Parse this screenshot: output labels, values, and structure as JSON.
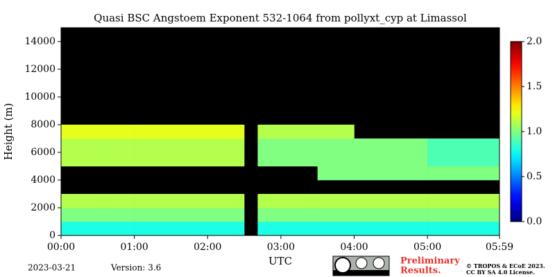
{
  "chart_data": {
    "type": "heatmap",
    "title": "Quasi BSC Angstoem Exponent 532-1064 from pollyxt_cyp at Limassol",
    "y_label": "Height (m)",
    "x_label": "UTC",
    "x": [
      0,
      30,
      60,
      90,
      120,
      150,
      161,
      180,
      210,
      240,
      270,
      300,
      330
    ],
    "y_bins": [
      0,
      1000,
      2000,
      3000,
      4000,
      5000,
      6000,
      7000,
      8000,
      9000,
      10000,
      11000,
      12000,
      13000,
      14000,
      15000
    ],
    "z": [
      [
        0.8,
        0.8,
        0.8,
        0.8,
        0.8,
        null,
        0.8,
        0.8,
        0.8,
        0.8,
        0.8,
        0.8,
        0.8
      ],
      [
        1.0,
        1.0,
        1.0,
        1.0,
        1.0,
        null,
        1.0,
        1.0,
        1.0,
        1.0,
        1.0,
        1.0,
        1.0
      ],
      [
        1.1,
        1.1,
        1.1,
        1.1,
        1.1,
        null,
        1.1,
        1.1,
        1.1,
        1.1,
        1.1,
        1.1,
        1.1
      ],
      [
        null,
        null,
        null,
        null,
        null,
        null,
        null,
        null,
        null,
        null,
        null,
        null,
        null
      ],
      [
        null,
        null,
        null,
        null,
        null,
        null,
        null,
        null,
        1.0,
        1.0,
        1.0,
        1.0,
        1.0
      ],
      [
        1.1,
        1.1,
        1.1,
        1.1,
        1.1,
        null,
        1.0,
        1.0,
        1.0,
        1.0,
        1.0,
        0.9,
        0.9
      ],
      [
        1.1,
        1.1,
        1.1,
        1.1,
        1.1,
        null,
        1.0,
        1.0,
        1.0,
        1.0,
        1.0,
        0.9,
        0.9
      ],
      [
        1.2,
        1.2,
        1.2,
        1.2,
        1.2,
        null,
        1.1,
        1.1,
        1.1,
        null,
        null,
        null,
        null
      ],
      [
        null,
        null,
        null,
        null,
        null,
        null,
        null,
        null,
        null,
        null,
        null,
        null,
        null
      ],
      [
        null,
        null,
        null,
        null,
        null,
        null,
        null,
        null,
        null,
        null,
        null,
        null,
        null
      ],
      [
        null,
        null,
        null,
        null,
        null,
        null,
        null,
        null,
        null,
        null,
        null,
        null,
        null
      ],
      [
        null,
        null,
        null,
        null,
        null,
        null,
        null,
        null,
        null,
        null,
        null,
        null,
        null
      ],
      [
        null,
        null,
        null,
        null,
        null,
        null,
        null,
        null,
        null,
        null,
        null,
        null,
        null
      ],
      [
        null,
        null,
        null,
        null,
        null,
        null,
        null,
        null,
        null,
        null,
        null,
        null,
        null
      ],
      [
        null,
        null,
        null,
        null,
        null,
        null,
        null,
        null,
        null,
        null,
        null,
        null,
        null
      ]
    ],
    "xlim": [
      0,
      359
    ],
    "xticks": [
      {
        "value": 0,
        "label": "00:00"
      },
      {
        "value": 60,
        "label": "01:00"
      },
      {
        "value": 120,
        "label": "02:00"
      },
      {
        "value": 180,
        "label": "03:00"
      },
      {
        "value": 240,
        "label": "04:00"
      },
      {
        "value": 300,
        "label": "05:00"
      },
      {
        "value": 359,
        "label": "05:59"
      }
    ],
    "ylim": [
      0,
      15000
    ],
    "yticks": [
      0,
      2000,
      4000,
      6000,
      8000,
      10000,
      12000,
      14000
    ],
    "colormap": "jet",
    "background": "#000000",
    "zlim": [
      0,
      2
    ],
    "zticks": [
      {
        "value": 0,
        "label": "0.0"
      },
      {
        "value": 0.5,
        "label": "0.5"
      },
      {
        "value": 1,
        "label": "1.0"
      },
      {
        "value": 1.5,
        "label": "1.5"
      },
      {
        "value": 2,
        "label": "2.0"
      }
    ],
    "date": "2023-03-21",
    "version": "Version: 3.6",
    "notice": [
      "Preliminary",
      "Results."
    ],
    "copyright": [
      "© TROPOS & ECoE 2023.",
      "CC BY SA 4.0 License."
    ]
  }
}
